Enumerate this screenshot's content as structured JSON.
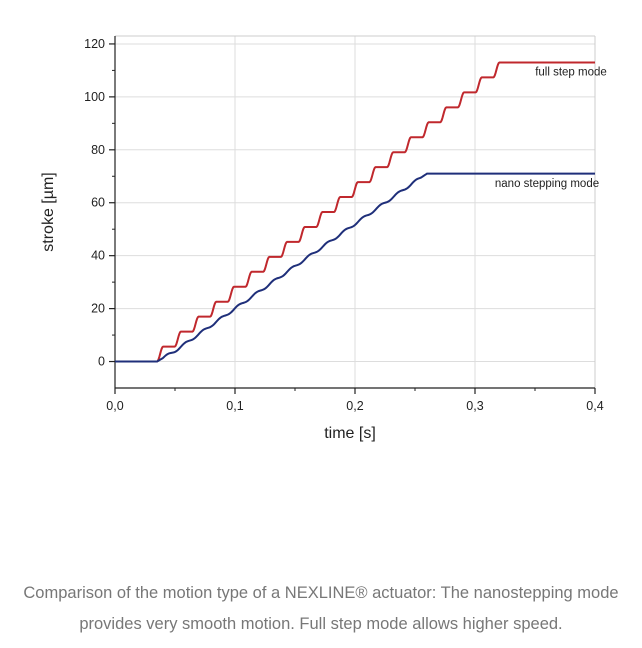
{
  "chart_data": {
    "type": "line",
    "title": "",
    "xlabel": "time [s]",
    "ylabel": "stroke [µm]",
    "xlim": [
      0.0,
      0.4
    ],
    "ylim": [
      -10,
      123
    ],
    "x_ticks": [
      0.0,
      0.1,
      0.2,
      0.3,
      0.4
    ],
    "x_tick_labels": [
      "0,0",
      "0,1",
      "0,2",
      "0,3",
      "0,4"
    ],
    "y_ticks": [
      0,
      20,
      40,
      60,
      80,
      100,
      120
    ],
    "y_tick_labels": [
      "0",
      "20",
      "40",
      "60",
      "80",
      "100",
      "120"
    ],
    "grid": true,
    "colors": {
      "full": "#c0282d",
      "nano": "#1f2f7a",
      "grid": "#dddddd",
      "axis": "#222222"
    },
    "series": [
      {
        "name": "full step mode",
        "kind": "staircase",
        "x_start": 0.035,
        "x_end": 0.33,
        "y_start": 0,
        "y_end": 113,
        "step_count": 20,
        "x_max": 0.4
      },
      {
        "name": "nano stepping mode",
        "kind": "ramp",
        "x": [
          0.0,
          0.035,
          0.05,
          0.1,
          0.15,
          0.2,
          0.25,
          0.26,
          0.4
        ],
        "y": [
          0,
          0,
          4,
          20,
          36,
          52,
          68,
          71,
          71
        ]
      }
    ],
    "annotations": [
      {
        "text": "full step mode",
        "series": "full step mode",
        "x": 0.38,
        "y": 108
      },
      {
        "text": "nano stepping mode",
        "series": "nano stepping mode",
        "x": 0.36,
        "y": 66
      }
    ]
  },
  "caption": {
    "line1": "Comparison of the motion type of a NEXLINE® actuator: The nanostepping mode",
    "line2": "provides very smooth motion. Full step mode allows higher speed."
  }
}
